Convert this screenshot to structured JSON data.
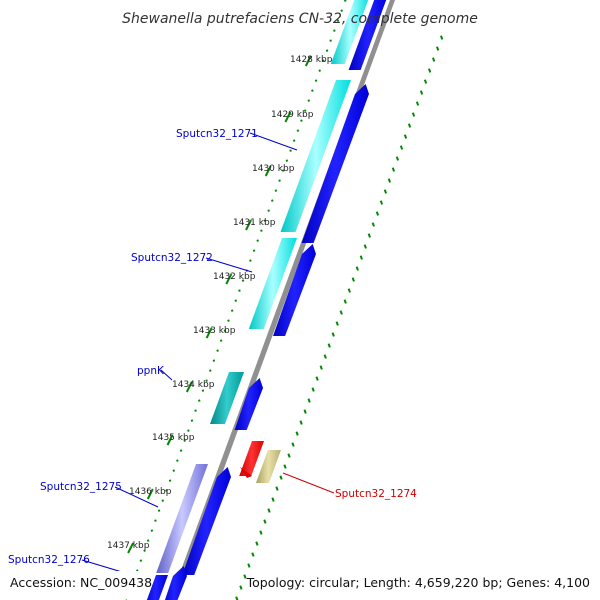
{
  "title": "Shewanella putrefaciens CN-32, complete genome",
  "footer": {
    "accession": "Accession: NC_009438",
    "summary": "Topology: circular; Length: 4,659,220 bp; Genes: 4,100"
  },
  "ticks": [
    "1428 kbp",
    "1429 kbp",
    "1430 kbp",
    "1431 kbp",
    "1432 kbp",
    "1433 kbp",
    "1434 kbp",
    "1435 kbp",
    "1436 kbp",
    "1437 kbp"
  ],
  "gene_labels": [
    {
      "text": "Sputcn32_1271",
      "color": "#0000cc"
    },
    {
      "text": "Sputcn32_1272",
      "color": "#0000cc"
    },
    {
      "text": "ppnK",
      "color": "#0000cc"
    },
    {
      "text": "Sputcn32_1275",
      "color": "#0000cc"
    },
    {
      "text": "Sputcn32_1276",
      "color": "#0000cc"
    },
    {
      "text": "Sputcn32_1274",
      "color": "#cc0000"
    }
  ],
  "colors": {
    "cds_forward": "#0000ee",
    "cyan_feature": "#00eeee",
    "teal_feature": "#00aaaa",
    "reverse_cds": "#ee0000",
    "reverse_feature": "#c8c080",
    "lavender_feature": "#8888dd",
    "backbone": "#888888",
    "gc_marks": "#008800"
  }
}
